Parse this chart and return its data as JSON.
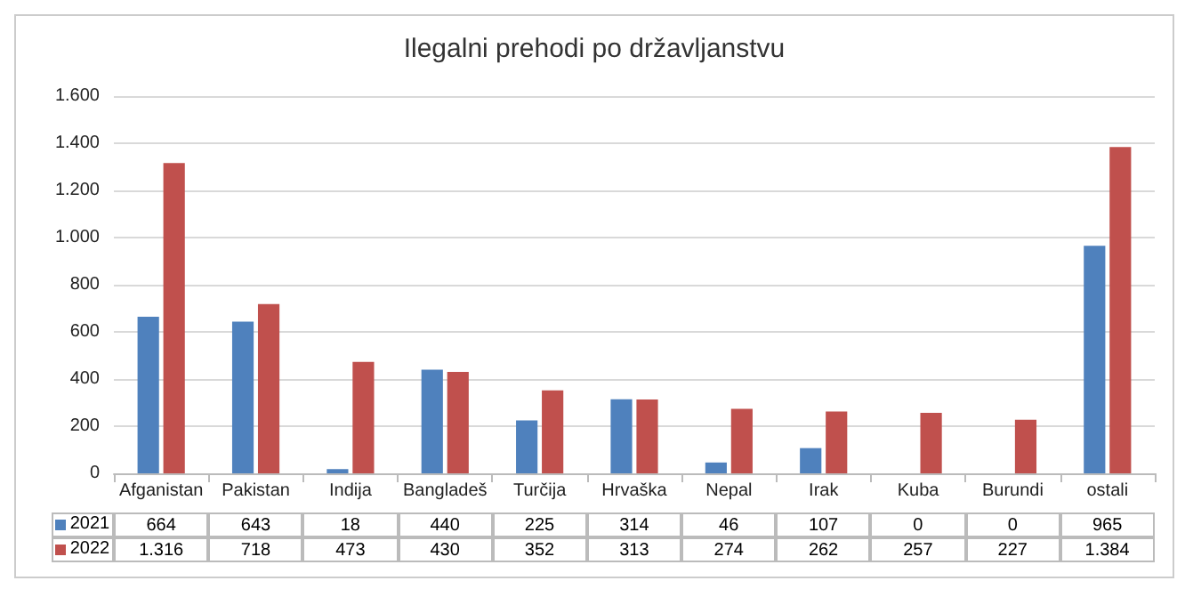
{
  "chart_data": {
    "type": "bar",
    "title": "Ilegalni prehodi po državljanstvu",
    "categories": [
      "Afganistan",
      "Pakistan",
      "Indija",
      "Bangladeš",
      "Turčija",
      "Hrvaška",
      "Nepal",
      "Irak",
      "Kuba",
      "Burundi",
      "ostali"
    ],
    "series": [
      {
        "name": "2021",
        "color": "#4f81bd",
        "values": [
          664,
          643,
          18,
          440,
          225,
          314,
          46,
          107,
          0,
          0,
          965
        ],
        "value_labels": [
          "664",
          "643",
          "18",
          "440",
          "225",
          "314",
          "46",
          "107",
          "0",
          "0",
          "965"
        ]
      },
      {
        "name": "2022",
        "color": "#c0504d",
        "values": [
          1316,
          718,
          473,
          430,
          352,
          313,
          274,
          262,
          257,
          227,
          1384
        ],
        "value_labels": [
          "1.316",
          "718",
          "473",
          "430",
          "352",
          "313",
          "274",
          "262",
          "257",
          "227",
          "1.384"
        ]
      }
    ],
    "ylim": [
      0,
      1600
    ],
    "yticks": [
      0,
      200,
      400,
      600,
      800,
      {
        "value": 1000,
        "label": "1.000"
      },
      {
        "value": 1200,
        "label": "1.200"
      },
      {
        "value": 1400,
        "label": "1.400"
      },
      {
        "value": 1600,
        "label": "1.600"
      }
    ],
    "grid": "y",
    "legend": "bottom left"
  }
}
